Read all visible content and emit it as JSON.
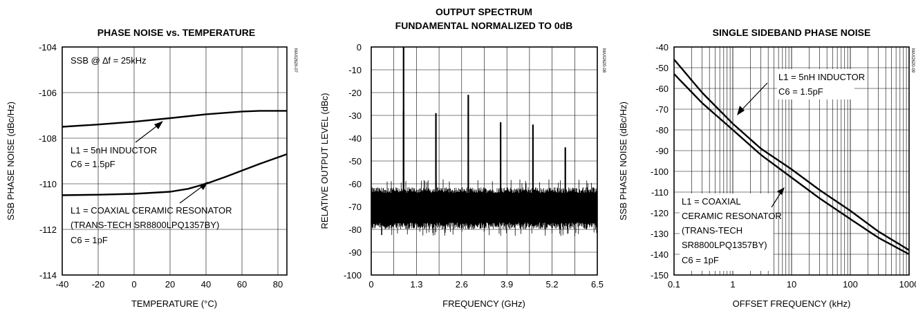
{
  "chart_data": [
    {
      "type": "line",
      "title": "PHASE NOISE vs. TEMPERATURE",
      "xlabel": "TEMPERATURE (°C)",
      "ylabel": "SSB PHASE NOISE (dBc/Hz)",
      "xlim": [
        -40,
        85
      ],
      "ylim": [
        -114,
        -104
      ],
      "x_ticks": [
        -40,
        -20,
        0,
        20,
        40,
        60,
        80
      ],
      "y_ticks": [
        -104,
        -106,
        -108,
        -110,
        -112,
        -114
      ],
      "grid": true,
      "side_code": "MAX2620-07",
      "corner_note": "SSB @ ∆f = 25kHz",
      "series": [
        {
          "label_lines": [
            "L1 = 5nH INDUCTOR",
            "C6 = 1.5pF"
          ],
          "x": [
            -40,
            -20,
            0,
            20,
            40,
            60,
            70,
            85
          ],
          "y": [
            -107.5,
            -107.4,
            -107.28,
            -107.12,
            -106.95,
            -106.83,
            -106.8,
            -106.8
          ]
        },
        {
          "label_lines": [
            "L1 = COAXIAL CERAMIC RESONATOR",
            "(TRANS-TECH SR8800LPQ1357BY)",
            "C6 = 1pF"
          ],
          "x": [
            -40,
            -20,
            0,
            20,
            30,
            40,
            50,
            60,
            70,
            85
          ],
          "y": [
            -110.5,
            -110.48,
            -110.44,
            -110.35,
            -110.22,
            -110.0,
            -109.72,
            -109.42,
            -109.12,
            -108.7
          ]
        }
      ]
    },
    {
      "type": "line",
      "title_lines": [
        "OUTPUT SPECTRUM",
        "FUNDAMENTAL NORMALIZED TO 0dB"
      ],
      "xlabel": "FREQUENCY (GHz)",
      "ylabel": "RELATIVE OUTPUT LEVEL (dBc)",
      "xlim": [
        0,
        6.5
      ],
      "ylim": [
        -100,
        0
      ],
      "x_ticks": [
        "0",
        "1.3",
        "2.6",
        "3.9",
        "5.2",
        "6.5"
      ],
      "y_ticks": [
        0,
        -10,
        -20,
        -30,
        -40,
        -50,
        -60,
        -70,
        -80,
        -90,
        -100
      ],
      "grid": true,
      "side_code": "MAX2620-08",
      "noise_floor": {
        "top": -60,
        "bottom": -83,
        "typical": [
          -64,
          -77
        ]
      },
      "spurs": [
        {
          "x": 0.93,
          "y": 0
        },
        {
          "x": 0.93,
          "y": -28
        },
        {
          "x": 1.86,
          "y": -29
        },
        {
          "x": 2.79,
          "y": -21
        },
        {
          "x": 3.72,
          "y": -33
        },
        {
          "x": 4.65,
          "y": -34
        },
        {
          "x": 5.58,
          "y": -44
        }
      ]
    },
    {
      "type": "line",
      "title": "SINGLE SIDEBAND PHASE NOISE",
      "xlabel": "OFFSET FREQUENCY (kHz)",
      "ylabel": "SSB PHASE NOISE (dBc/Hz)",
      "x_scale": "log",
      "xlim": [
        0.1,
        1000
      ],
      "ylim": [
        -150,
        -40
      ],
      "x_ticks": [
        "0.1",
        "1",
        "10",
        "100",
        "1000"
      ],
      "y_ticks": [
        -40,
        -50,
        -60,
        -70,
        -80,
        -90,
        -100,
        -110,
        -120,
        -130,
        -140,
        -150
      ],
      "grid": true,
      "side_code": "MAX2620-09",
      "series": [
        {
          "label_lines": [
            "L1 = 5nH INDUCTOR",
            "C6 = 1.5pF"
          ],
          "x": [
            0.1,
            0.3,
            1,
            3,
            10,
            30,
            100,
            300,
            1000
          ],
          "y": [
            -46,
            -62,
            -77,
            -89,
            -99,
            -109,
            -119,
            -129,
            -138
          ]
        },
        {
          "label_lines": [
            "L1 = COAXIAL",
            "CERAMIC RESONATOR",
            "(TRANS-TECH",
            "SR8800LPQ1357BY)",
            "C6 = 1pF"
          ],
          "x": [
            0.1,
            0.3,
            1,
            3,
            10,
            30,
            100,
            300,
            1000
          ],
          "y": [
            -53,
            -67,
            -80,
            -92,
            -103,
            -113,
            -123,
            -132,
            -140
          ]
        }
      ]
    }
  ]
}
